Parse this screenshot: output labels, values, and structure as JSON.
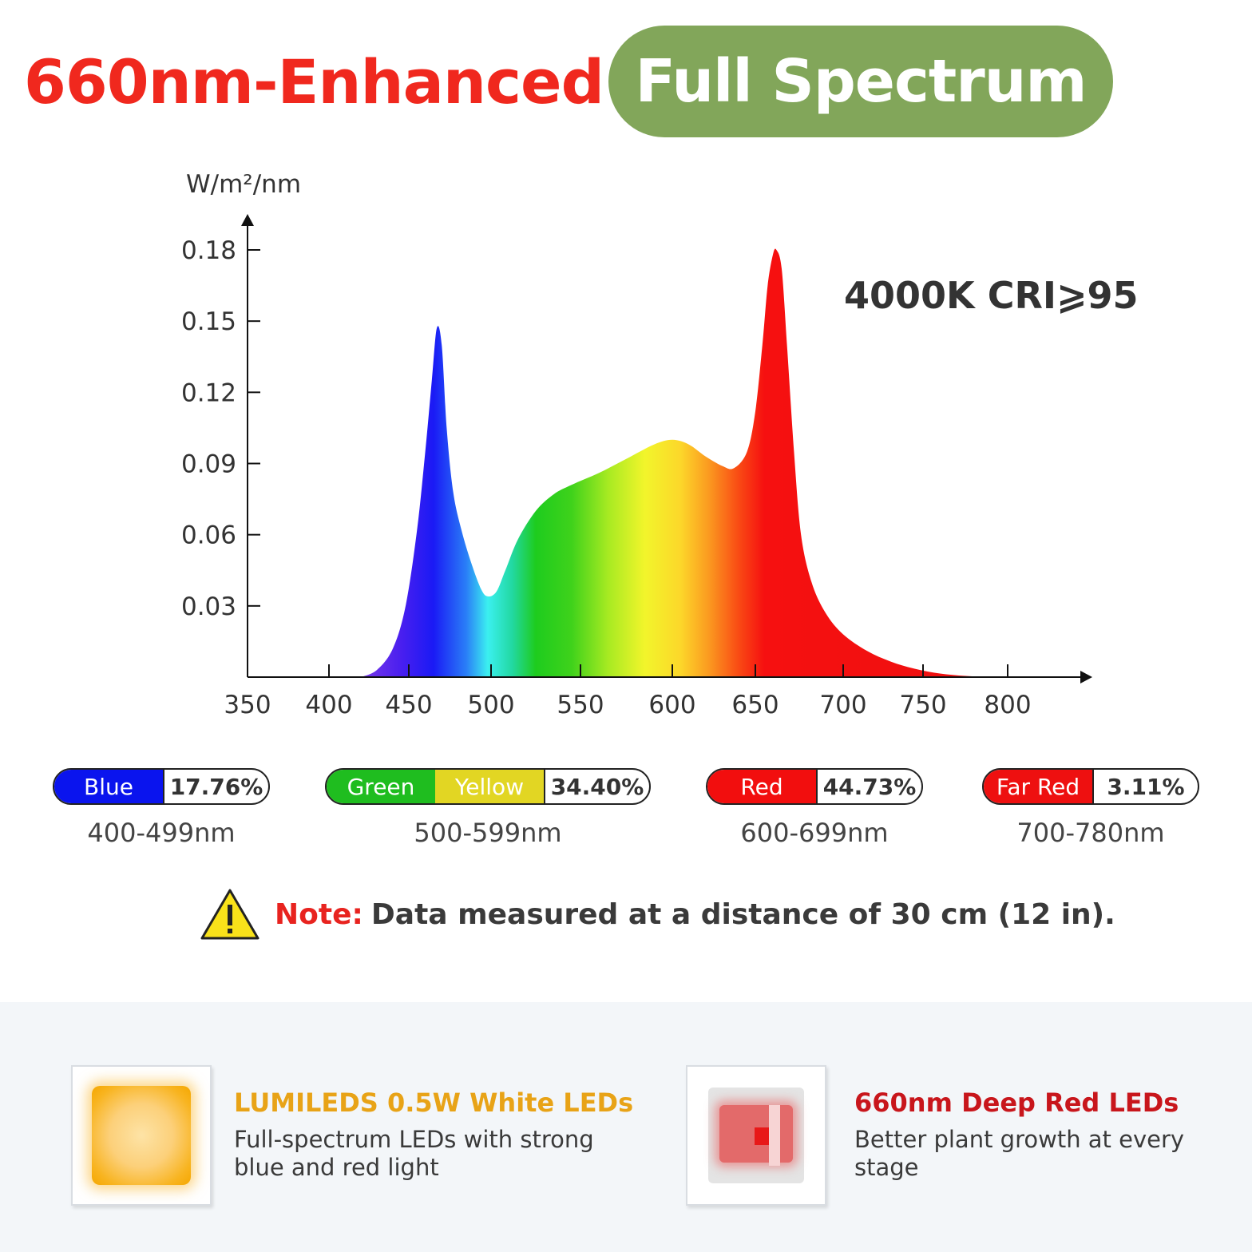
{
  "header": {
    "headline": "660nm-Enhanced",
    "badge": "Full Spectrum"
  },
  "chart_data": {
    "type": "area",
    "title": "",
    "ylabel": "W/m²/nm",
    "xlabel": "",
    "annotation": "4000K CRI⩾95",
    "xlim": [
      350,
      860
    ],
    "ylim": [
      0,
      0.18
    ],
    "x_ticks": [
      "350",
      "400",
      "450",
      "500",
      "550",
      "600",
      "650",
      "700",
      "750",
      "800"
    ],
    "y_ticks": [
      "0.03",
      "0.06",
      "0.09",
      "0.12",
      "0.15",
      "0.18"
    ],
    "fill": "visible-spectrum gradient",
    "x": [
      420,
      430,
      440,
      448,
      455,
      460,
      464,
      467,
      470,
      473,
      477,
      482,
      488,
      494,
      498,
      503,
      508,
      515,
      525,
      535,
      545,
      560,
      575,
      590,
      600,
      610,
      620,
      630,
      637,
      645,
      650,
      654,
      657,
      660,
      662,
      665,
      668,
      672,
      676,
      682,
      690,
      700,
      715,
      730,
      745,
      760,
      775,
      790
    ],
    "y": [
      0.0,
      0.003,
      0.012,
      0.03,
      0.062,
      0.095,
      0.125,
      0.147,
      0.14,
      0.105,
      0.078,
      0.062,
      0.048,
      0.037,
      0.034,
      0.036,
      0.045,
      0.058,
      0.07,
      0.077,
      0.081,
      0.086,
      0.092,
      0.098,
      0.1,
      0.098,
      0.093,
      0.089,
      0.088,
      0.095,
      0.112,
      0.14,
      0.165,
      0.178,
      0.18,
      0.172,
      0.14,
      0.095,
      0.06,
      0.04,
      0.027,
      0.018,
      0.011,
      0.0065,
      0.0035,
      0.0015,
      0.0005,
      0.0
    ]
  },
  "bands": [
    {
      "segments": [
        {
          "label": "Blue",
          "color": "#0a14ee"
        }
      ],
      "percent": "17.76%",
      "range": "400-499nm"
    },
    {
      "segments": [
        {
          "label": "Green",
          "color": "#1fbd1f"
        },
        {
          "label": "Yellow",
          "color": "#e2d623"
        }
      ],
      "percent": "34.40%",
      "range": "500-599nm"
    },
    {
      "segments": [
        {
          "label": "Red",
          "color": "#f20e0e"
        }
      ],
      "percent": "44.73%",
      "range": "600-699nm"
    },
    {
      "segments": [
        {
          "label": "Far Red",
          "color": "#ee1010"
        }
      ],
      "percent": "3.11%",
      "range": "700-780nm"
    }
  ],
  "note": {
    "icon": "warning-icon",
    "label": "Note:",
    "text": "Data measured at a distance of 30 cm (12 in)."
  },
  "features": [
    {
      "icon": "white-led-chip-icon",
      "title": "LUMILEDS 0.5W White LEDs",
      "title_color": "#e8a317",
      "desc": "Full-spectrum LEDs with strong blue and red light"
    },
    {
      "icon": "red-led-chip-icon",
      "title": "660nm Deep Red LEDs",
      "title_color": "#c8161c",
      "desc": "Better plant growth at every stage"
    }
  ]
}
